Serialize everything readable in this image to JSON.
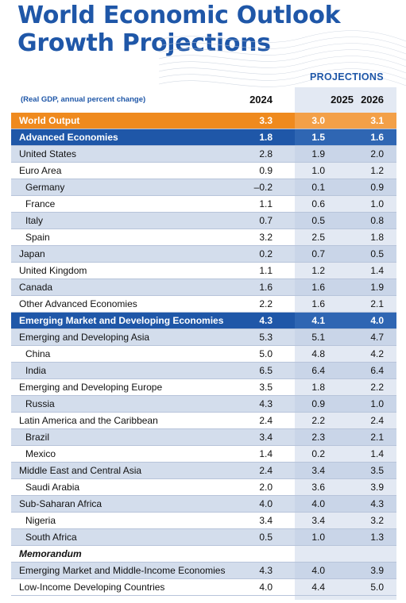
{
  "title_line1": "World Economic Outlook",
  "title_line2": "Growth Projections",
  "projections_label": "PROJECTIONS",
  "header": {
    "note": "(Real GDP, annual percent change)",
    "year1": "2024",
    "year2": "2025",
    "year3": "2026"
  },
  "rows": [
    {
      "label": "World Output",
      "v2024": "3.3",
      "v2025": "3.0",
      "v2026": "3.1"
    },
    {
      "label": "Advanced Economies",
      "v2024": "1.8",
      "v2025": "1.5",
      "v2026": "1.6"
    },
    {
      "label": "United States",
      "v2024": "2.8",
      "v2025": "1.9",
      "v2026": "2.0"
    },
    {
      "label": "Euro Area",
      "v2024": "0.9",
      "v2025": "1.0",
      "v2026": "1.2"
    },
    {
      "label": "Germany",
      "v2024": "–0.2",
      "v2025": "0.1",
      "v2026": "0.9"
    },
    {
      "label": "France",
      "v2024": "1.1",
      "v2025": "0.6",
      "v2026": "1.0"
    },
    {
      "label": "Italy",
      "v2024": "0.7",
      "v2025": "0.5",
      "v2026": "0.8"
    },
    {
      "label": "Spain",
      "v2024": "3.2",
      "v2025": "2.5",
      "v2026": "1.8"
    },
    {
      "label": "Japan",
      "v2024": "0.2",
      "v2025": "0.7",
      "v2026": "0.5"
    },
    {
      "label": "United Kingdom",
      "v2024": "1.1",
      "v2025": "1.2",
      "v2026": "1.4"
    },
    {
      "label": "Canada",
      "v2024": "1.6",
      "v2025": "1.6",
      "v2026": "1.9"
    },
    {
      "label": "Other Advanced Economies",
      "v2024": "2.2",
      "v2025": "1.6",
      "v2026": "2.1"
    },
    {
      "label": "Emerging Market and Developing Economies",
      "v2024": "4.3",
      "v2025": "4.1",
      "v2026": "4.0"
    },
    {
      "label": "Emerging and Developing Asia",
      "v2024": "5.3",
      "v2025": "5.1",
      "v2026": "4.7"
    },
    {
      "label": "China",
      "v2024": "5.0",
      "v2025": "4.8",
      "v2026": "4.2"
    },
    {
      "label": "India",
      "v2024": "6.5",
      "v2025": "6.4",
      "v2026": "6.4"
    },
    {
      "label": "Emerging and Developing Europe",
      "v2024": "3.5",
      "v2025": "1.8",
      "v2026": "2.2"
    },
    {
      "label": "Russia",
      "v2024": "4.3",
      "v2025": "0.9",
      "v2026": "1.0"
    },
    {
      "label": "Latin America and the Caribbean",
      "v2024": "2.4",
      "v2025": "2.2",
      "v2026": "2.4"
    },
    {
      "label": "Brazil",
      "v2024": "3.4",
      "v2025": "2.3",
      "v2026": "2.1"
    },
    {
      "label": "Mexico",
      "v2024": "1.4",
      "v2025": "0.2",
      "v2026": "1.4"
    },
    {
      "label": "Middle East and Central Asia",
      "v2024": "2.4",
      "v2025": "3.4",
      "v2026": "3.5"
    },
    {
      "label": "Saudi Arabia",
      "v2024": "2.0",
      "v2025": "3.6",
      "v2026": "3.9"
    },
    {
      "label": "Sub-Saharan Africa",
      "v2024": "4.0",
      "v2025": "4.0",
      "v2026": "4.3"
    },
    {
      "label": "Nigeria",
      "v2024": "3.4",
      "v2025": "3.4",
      "v2026": "3.2"
    },
    {
      "label": "South Africa",
      "v2024": "0.5",
      "v2025": "1.0",
      "v2026": "1.3"
    },
    {
      "label": "Memorandum",
      "v2024": "",
      "v2025": "",
      "v2026": ""
    },
    {
      "label": "Emerging Market and Middle-Income Economies",
      "v2024": "4.3",
      "v2025": "4.0",
      "v2026": "3.9"
    },
    {
      "label": "Low-Income Developing Countries",
      "v2024": "4.0",
      "v2025": "4.4",
      "v2026": "5.0"
    }
  ],
  "colors": {
    "brand_blue": "#1f57a8",
    "world_output_orange": "#ef8a1e",
    "light_row": "#d3ddec",
    "projection_shade": "#e3e9f3"
  }
}
